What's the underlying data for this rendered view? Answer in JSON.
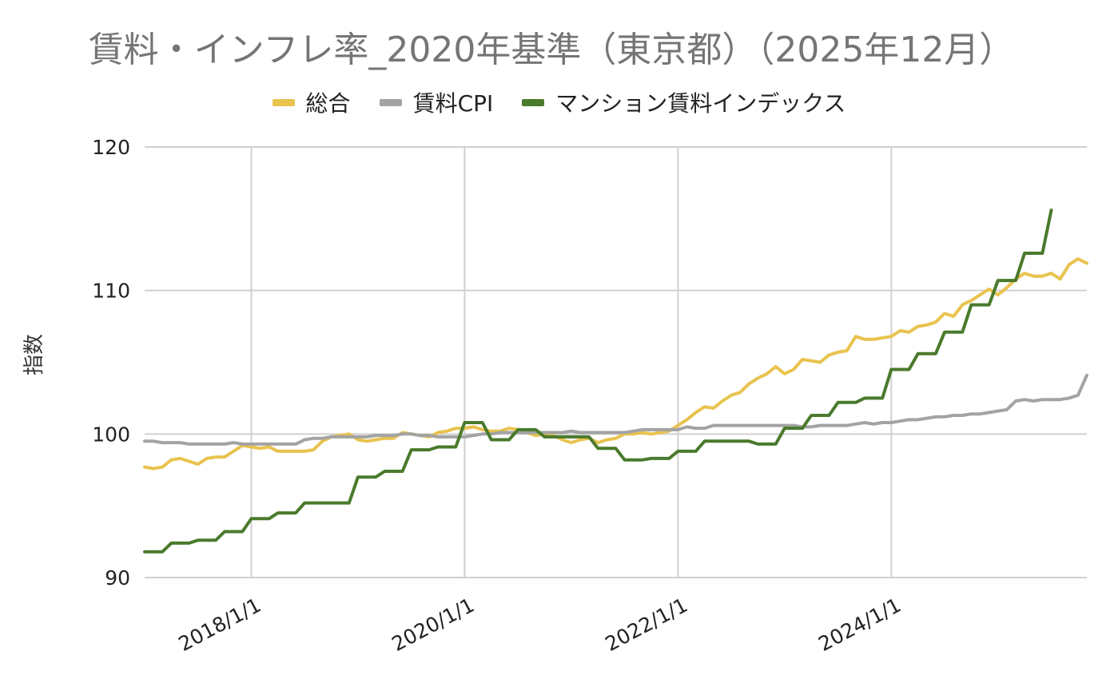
{
  "chart_data": {
    "type": "line",
    "title": "賃料・インフレ率_2020年基準（東京都）（2025年12月）",
    "xlabel": "",
    "ylabel": "指数",
    "ylim": [
      90,
      120
    ],
    "yticks": [
      "90",
      "100",
      "110",
      "120"
    ],
    "xticks": [
      "2018/1/1",
      "2020/1/1",
      "2022/1/1",
      "2024/1/1"
    ],
    "xtick_months": [
      12,
      36,
      60,
      84
    ],
    "x_start": "2017/1",
    "x_end": "2025/12",
    "legend_position": "top",
    "grid": true,
    "series": [
      {
        "name": "総合",
        "color": "#e8c34e",
        "values": [
          97.7,
          97.6,
          97.7,
          98.2,
          98.3,
          98.1,
          97.9,
          98.3,
          98.4,
          98.4,
          98.8,
          99.2,
          99.1,
          99.0,
          99.1,
          98.8,
          98.8,
          98.8,
          98.8,
          98.9,
          99.5,
          99.8,
          99.9,
          100.0,
          99.6,
          99.5,
          99.6,
          99.7,
          99.7,
          100.1,
          100.0,
          99.9,
          99.8,
          100.1,
          100.2,
          100.4,
          100.4,
          100.5,
          100.3,
          100.2,
          100.2,
          100.4,
          100.3,
          100.1,
          99.9,
          100.0,
          99.9,
          99.6,
          99.4,
          99.6,
          99.7,
          99.4,
          99.6,
          99.7,
          100.0,
          100.0,
          100.1,
          100.0,
          100.1,
          100.2,
          100.6,
          101.0,
          101.5,
          101.9,
          101.8,
          102.3,
          102.7,
          102.9,
          103.5,
          103.9,
          104.2,
          104.7,
          104.2,
          104.5,
          105.2,
          105.1,
          105.0,
          105.5,
          105.7,
          105.8,
          106.8,
          106.6,
          106.6,
          106.7,
          106.8,
          107.2,
          107.1,
          107.5,
          107.6,
          107.8,
          108.4,
          108.2,
          109.0,
          109.3,
          109.7,
          110.1,
          109.7,
          110.2,
          110.8,
          111.2,
          111.0,
          111.0,
          111.2,
          110.8,
          111.8,
          112.2,
          111.9
        ]
      },
      {
        "name": "賃料CPI",
        "color": "#a3a3a3",
        "values": [
          99.5,
          99.5,
          99.4,
          99.4,
          99.4,
          99.3,
          99.3,
          99.3,
          99.3,
          99.3,
          99.4,
          99.3,
          99.3,
          99.3,
          99.3,
          99.3,
          99.3,
          99.3,
          99.6,
          99.7,
          99.7,
          99.8,
          99.8,
          99.8,
          99.8,
          99.8,
          99.9,
          99.9,
          99.9,
          100.0,
          100.0,
          99.9,
          99.9,
          99.8,
          99.8,
          99.8,
          99.8,
          99.9,
          100.0,
          100.0,
          100.1,
          100.1,
          100.1,
          100.1,
          100.1,
          100.1,
          100.1,
          100.1,
          100.2,
          100.1,
          100.1,
          100.1,
          100.1,
          100.1,
          100.1,
          100.2,
          100.3,
          100.3,
          100.3,
          100.3,
          100.3,
          100.5,
          100.4,
          100.4,
          100.6,
          100.6,
          100.6,
          100.6,
          100.6,
          100.6,
          100.6,
          100.6,
          100.6,
          100.6,
          100.5,
          100.5,
          100.6,
          100.6,
          100.6,
          100.6,
          100.7,
          100.8,
          100.7,
          100.8,
          100.8,
          100.9,
          101.0,
          101.0,
          101.1,
          101.2,
          101.2,
          101.3,
          101.3,
          101.4,
          101.4,
          101.5,
          101.6,
          101.7,
          102.3,
          102.4,
          102.3,
          102.4,
          102.4,
          102.4,
          102.5,
          102.7,
          104.1
        ]
      },
      {
        "name": "マンション賃料インデックス",
        "color": "#4a7a2c",
        "values": [
          91.8,
          91.8,
          91.8,
          92.4,
          92.4,
          92.4,
          92.6,
          92.6,
          92.6,
          93.2,
          93.2,
          93.2,
          94.1,
          94.1,
          94.1,
          94.5,
          94.5,
          94.5,
          95.2,
          95.2,
          95.2,
          95.2,
          95.2,
          95.2,
          97.0,
          97.0,
          97.0,
          97.4,
          97.4,
          97.4,
          98.9,
          98.9,
          98.9,
          99.1,
          99.1,
          99.1,
          100.8,
          100.8,
          100.8,
          99.6,
          99.6,
          99.6,
          100.3,
          100.3,
          100.3,
          99.8,
          99.8,
          99.8,
          99.8,
          99.8,
          99.8,
          99.0,
          99.0,
          99.0,
          98.2,
          98.2,
          98.2,
          98.3,
          98.3,
          98.3,
          98.8,
          98.8,
          98.8,
          99.5,
          99.5,
          99.5,
          99.5,
          99.5,
          99.5,
          99.3,
          99.3,
          99.3,
          100.4,
          100.4,
          100.4,
          101.3,
          101.3,
          101.3,
          102.2,
          102.2,
          102.2,
          102.5,
          102.5,
          102.5,
          104.5,
          104.5,
          104.5,
          105.6,
          105.6,
          105.6,
          107.1,
          107.1,
          107.1,
          109.0,
          109.0,
          109.0,
          110.7,
          110.7,
          110.7,
          112.6,
          112.6,
          112.6,
          115.6
        ]
      }
    ]
  }
}
